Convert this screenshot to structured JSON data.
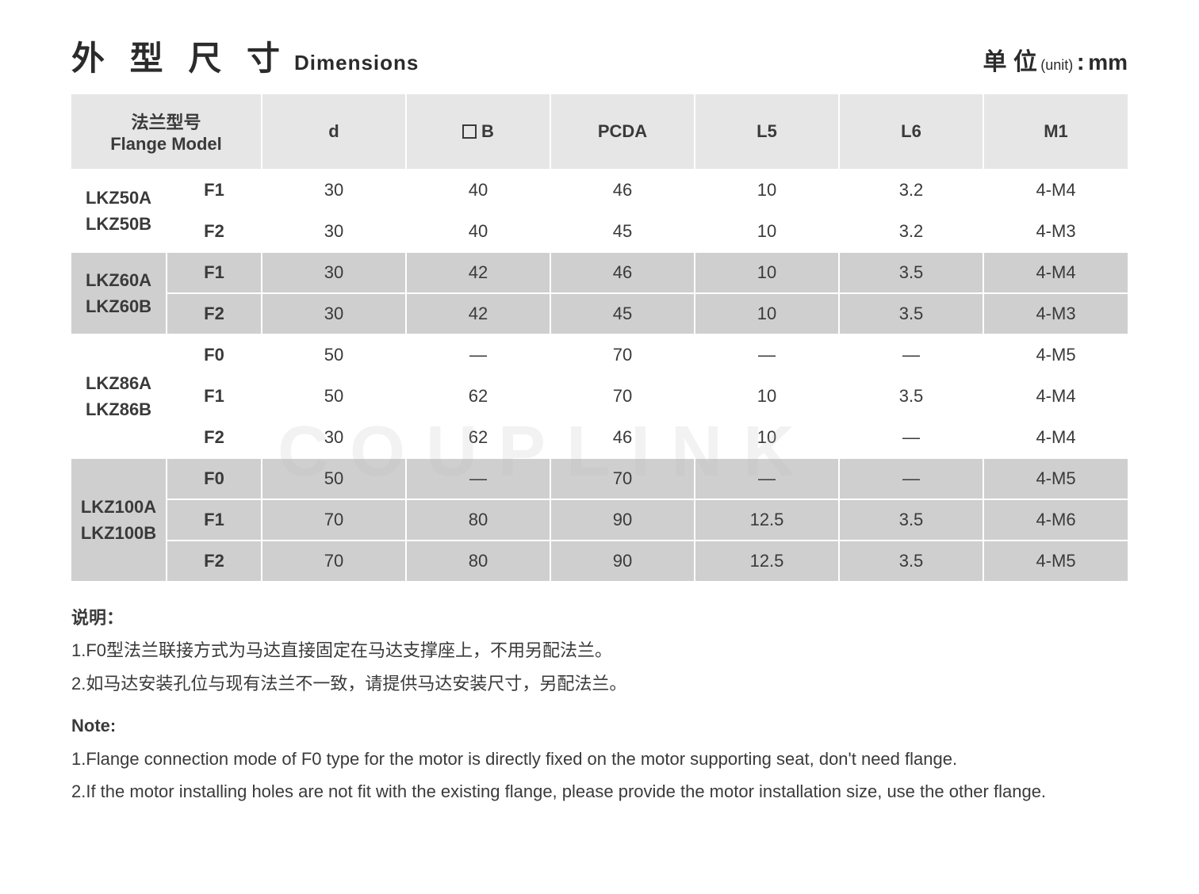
{
  "title": {
    "cn": "外 型 尺 寸",
    "en": "Dimensions"
  },
  "unit": {
    "cn": "单 位",
    "sm": "(unit)",
    "colon": ":",
    "mm": "mm"
  },
  "table": {
    "headers": {
      "model_cn": "法兰型号",
      "model_en": "Flange Model",
      "d": "d",
      "b": "B",
      "pcda": "PCDA",
      "l5": "L5",
      "l6": "L6",
      "m1": "M1"
    },
    "groups": [
      {
        "model": "LKZ50A\nLKZ50B",
        "shade": "white",
        "rows": [
          {
            "sub": "F1",
            "d": "30",
            "b": "40",
            "pcda": "46",
            "l5": "10",
            "l6": "3.2",
            "m1": "4-M4"
          },
          {
            "sub": "F2",
            "d": "30",
            "b": "40",
            "pcda": "45",
            "l5": "10",
            "l6": "3.2",
            "m1": "4-M3"
          }
        ]
      },
      {
        "model": "LKZ60A\nLKZ60B",
        "shade": "grey",
        "rows": [
          {
            "sub": "F1",
            "d": "30",
            "b": "42",
            "pcda": "46",
            "l5": "10",
            "l6": "3.5",
            "m1": "4-M4"
          },
          {
            "sub": "F2",
            "d": "30",
            "b": "42",
            "pcda": "45",
            "l5": "10",
            "l6": "3.5",
            "m1": "4-M3"
          }
        ]
      },
      {
        "model": "LKZ86A\nLKZ86B",
        "shade": "white",
        "rows": [
          {
            "sub": "F0",
            "d": "50",
            "b": "—",
            "pcda": "70",
            "l5": "—",
            "l6": "—",
            "m1": "4-M5"
          },
          {
            "sub": "F1",
            "d": "50",
            "b": "62",
            "pcda": "70",
            "l5": "10",
            "l6": "3.5",
            "m1": "4-M4"
          },
          {
            "sub": "F2",
            "d": "30",
            "b": "62",
            "pcda": "46",
            "l5": "10",
            "l6": "—",
            "m1": "4-M4"
          }
        ]
      },
      {
        "model": "LKZ100A\nLKZ100B",
        "shade": "grey",
        "rows": [
          {
            "sub": "F0",
            "d": "50",
            "b": "—",
            "pcda": "70",
            "l5": "—",
            "l6": "—",
            "m1": "4-M5"
          },
          {
            "sub": "F1",
            "d": "70",
            "b": "80",
            "pcda": "90",
            "l5": "12.5",
            "l6": "3.5",
            "m1": "4-M6"
          },
          {
            "sub": "F2",
            "d": "70",
            "b": "80",
            "pcda": "90",
            "l5": "12.5",
            "l6": "3.5",
            "m1": "4-M5"
          }
        ]
      }
    ]
  },
  "notes": {
    "cn_hd": "说明：",
    "cn1": "1.F0型法兰联接方式为马达直接固定在马达支撑座上，不用另配法兰。",
    "cn2": "2.如马达安装孔位与现有法兰不一致，请提供马达安装尺寸，另配法兰。",
    "en_hd": "Note:",
    "en1": "1.Flange connection mode of F0 type for the motor is directly fixed on the motor supporting seat, don't need flange.",
    "en2": "2.If the motor installing holes are not fit with the existing flange, please provide the motor installation size, use the other flange."
  },
  "watermark": "COUPLINK",
  "colors": {
    "header_bg": "#e6e6e6",
    "grey_row_bg": "#cfcfcf",
    "white_row_bg": "#ffffff",
    "text": "#3a3a3a",
    "sep": "#ffffff"
  }
}
